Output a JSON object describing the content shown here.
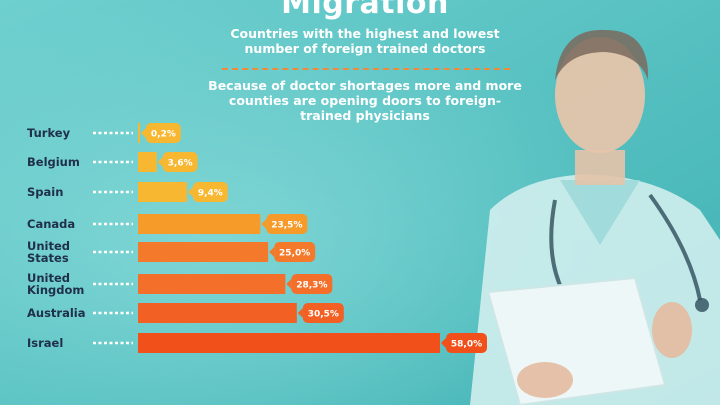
{
  "title": "Migration",
  "subtitle": "Countries with the highest and lowest number of foreign trained doctors",
  "description": "Because of doctor shortages more and more counties are opening doors to foreign-trained physicians",
  "colors": {
    "background": "#5ec7c7",
    "bar_low": "#f7b731",
    "bar_mid": "#f69a2a",
    "bar_high": "#f2561b"
  },
  "chart_data": {
    "type": "bar",
    "orientation": "horizontal",
    "title": "",
    "xlabel": "",
    "ylabel": "",
    "xlim": [
      0,
      58
    ],
    "categories": [
      "Turkey",
      "Belgium",
      "Spain",
      "Canada",
      "United States",
      "United Kingdom",
      "Australia",
      "Israel"
    ],
    "category_lines": [
      [
        "Turkey"
      ],
      [
        "Belgium"
      ],
      [
        "Spain"
      ],
      [
        "Canada"
      ],
      [
        "United",
        "States"
      ],
      [
        "United",
        "Kingdom"
      ],
      [
        "Australia"
      ],
      [
        "Israel"
      ]
    ],
    "values": [
      0.2,
      3.6,
      9.4,
      23.5,
      25.0,
      28.3,
      30.5,
      58.0
    ],
    "labels": [
      "0,2%",
      "3,6%",
      "9,4%",
      "23,5%",
      "25,0%",
      "28,3%",
      "30,5%",
      "58,0%"
    ],
    "bar_colors": [
      "#f7b731",
      "#f7b731",
      "#f7b731",
      "#f69a2a",
      "#f4792a",
      "#f4702a",
      "#f26023",
      "#f2501a"
    ],
    "grid": false,
    "legend": "none"
  }
}
